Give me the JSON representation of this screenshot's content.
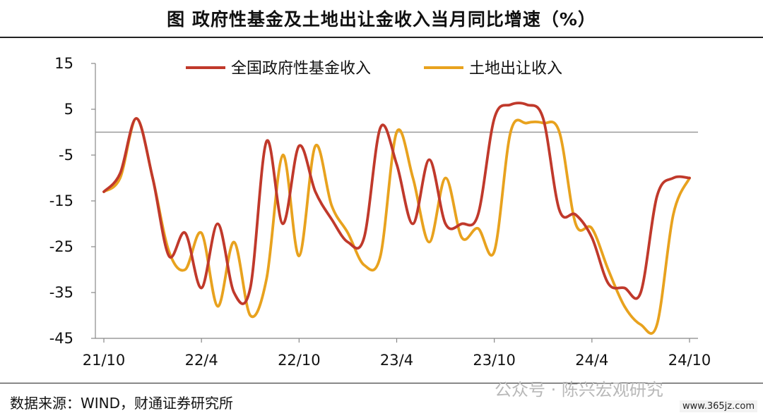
{
  "title": "图 政府性基金及土地出让金收入当月同比增速（%）",
  "source": "数据来源：WIND，财通证券研究所",
  "watermark": "公众号 · 陈兴宏观研究",
  "site": "www.365jz.com",
  "chart_data": {
    "type": "line",
    "title": "图 政府性基金及土地出让金收入当月同比增速（%）",
    "x": [
      "21/10",
      "21/11",
      "21/12",
      "22/1",
      "22/2",
      "22/3",
      "22/4",
      "22/5",
      "22/6",
      "22/7",
      "22/8",
      "22/9",
      "22/10",
      "22/11",
      "22/12",
      "23/1",
      "23/2",
      "23/3",
      "23/4",
      "23/5",
      "23/6",
      "23/7",
      "23/8",
      "23/9",
      "23/10",
      "23/11",
      "23/12",
      "24/1",
      "24/2",
      "24/3",
      "24/4",
      "24/5",
      "24/6",
      "24/7",
      "24/8",
      "24/9",
      "24/10"
    ],
    "x_tick_labels": [
      "21/10",
      "22/4",
      "22/10",
      "23/4",
      "23/10",
      "24/4",
      "24/10"
    ],
    "ylim": [
      -45,
      15
    ],
    "yticks": [
      15,
      5,
      -5,
      -15,
      -25,
      -35,
      -45
    ],
    "reference_line": 0,
    "legend_position": "top",
    "series": [
      {
        "name": "全国政府性基金收入",
        "color": "#c0392b",
        "values": [
          -13,
          -9,
          3,
          -10,
          -27,
          -22,
          -34,
          -20,
          -35,
          -34,
          -2,
          -20,
          -3,
          -13,
          -19,
          -24,
          -23,
          1,
          -7,
          -20,
          -6,
          -20,
          -20,
          -18,
          3,
          6,
          6,
          3,
          -17,
          -18,
          -23,
          -33,
          -34,
          -35,
          -14,
          -10,
          -10
        ]
      },
      {
        "name": "土地出让收入",
        "color": "#e8a21e",
        "values": [
          -13,
          -10,
          3,
          -10,
          -26,
          -30,
          -22,
          -38,
          -24,
          -40,
          -32,
          -5,
          -27,
          -3,
          -16,
          -22,
          -29,
          -27,
          0,
          -10,
          -24,
          -10,
          -23,
          -21,
          -26,
          0,
          2,
          2,
          0,
          -20,
          -21,
          -30,
          -38,
          -42,
          -42,
          -18,
          -10
        ]
      }
    ]
  }
}
